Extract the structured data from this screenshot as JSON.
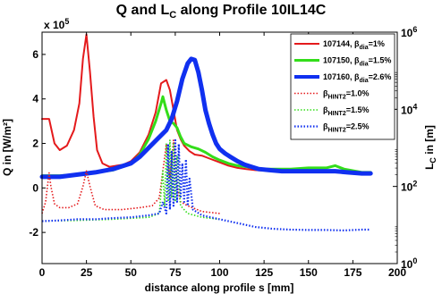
{
  "chart_data": {
    "type": "line",
    "title": {
      "pre": "Q and L",
      "sub": "C",
      "post": " along Profile 10IL14C"
    },
    "xlabel": "distance along profile s [mm]",
    "ylabel_left": "Q in [W/m²]",
    "ylabel_right": {
      "pre": "L",
      "sub": "C",
      "post": " in [m]"
    },
    "x_ticks": [
      "0",
      "25",
      "50",
      "75",
      "100",
      "125",
      "150",
      "175",
      "200"
    ],
    "y_left_ticks": [
      "-2",
      "0",
      "2",
      "4",
      "6"
    ],
    "y_left_exponent": {
      "base": "x 10",
      "exp": "5"
    },
    "y_right_ticks": [
      {
        "base": "10",
        "exp": "0"
      },
      {
        "base": "10",
        "exp": "2"
      },
      {
        "base": "10",
        "exp": "4"
      },
      {
        "base": "10",
        "exp": "6"
      }
    ],
    "xlim": [
      0,
      200
    ],
    "ylim_left": [
      -3.4,
      7.0
    ],
    "ylim_right_log10": [
      0,
      6
    ],
    "legend_position": "top-right",
    "series": [
      {
        "name": "107144, β_dia=1%",
        "legend": {
          "pre": "107144, β",
          "sub": "dia",
          "post": "=1%"
        },
        "axis": "left",
        "style": "solid",
        "width": 2,
        "color": "#e41a1c",
        "points": [
          [
            0,
            3.1
          ],
          [
            4,
            3.1
          ],
          [
            7,
            2.0
          ],
          [
            10,
            1.7
          ],
          [
            14,
            1.9
          ],
          [
            18,
            2.6
          ],
          [
            21,
            3.8
          ],
          [
            23,
            5.8
          ],
          [
            25,
            6.9
          ],
          [
            27,
            5.2
          ],
          [
            29,
            3.2
          ],
          [
            31,
            1.7
          ],
          [
            34,
            1.1
          ],
          [
            38,
            0.95
          ],
          [
            42,
            1.0
          ],
          [
            46,
            1.05
          ],
          [
            50,
            1.2
          ],
          [
            55,
            1.6
          ],
          [
            60,
            2.4
          ],
          [
            64,
            3.4
          ],
          [
            67,
            4.7
          ],
          [
            70,
            4.85
          ],
          [
            72,
            4.4
          ],
          [
            74,
            3.5
          ],
          [
            76,
            2.6
          ],
          [
            78,
            2.2
          ],
          [
            80,
            1.9
          ],
          [
            83,
            1.65
          ],
          [
            86,
            1.5
          ],
          [
            90,
            1.45
          ],
          [
            95,
            1.3
          ],
          [
            100,
            1.15
          ],
          [
            105,
            1.0
          ],
          [
            110,
            0.9
          ],
          [
            115,
            0.85
          ],
          [
            120,
            0.8
          ],
          [
            130,
            0.75
          ],
          [
            140,
            0.75
          ],
          [
            150,
            0.75
          ],
          [
            160,
            0.75
          ],
          [
            170,
            0.7
          ],
          [
            180,
            0.65
          ],
          [
            185,
            0.65
          ]
        ]
      },
      {
        "name": "107150, β_dia=1.5%",
        "legend": {
          "pre": "107150, β",
          "sub": "dia",
          "post": "=1.5%"
        },
        "axis": "left",
        "style": "solid",
        "width": 3,
        "color": "#33dd1a",
        "points": [
          [
            0,
            0.55
          ],
          [
            10,
            0.55
          ],
          [
            20,
            0.6
          ],
          [
            30,
            0.7
          ],
          [
            40,
            0.8
          ],
          [
            50,
            1.1
          ],
          [
            55,
            1.5
          ],
          [
            60,
            2.2
          ],
          [
            64,
            3.0
          ],
          [
            67,
            3.8
          ],
          [
            68,
            4.1
          ],
          [
            70,
            3.5
          ],
          [
            72,
            3.0
          ],
          [
            74,
            2.9
          ],
          [
            76,
            2.7
          ],
          [
            78,
            2.3
          ],
          [
            80,
            2.0
          ],
          [
            84,
            1.85
          ],
          [
            88,
            1.75
          ],
          [
            92,
            1.6
          ],
          [
            96,
            1.4
          ],
          [
            100,
            1.25
          ],
          [
            105,
            1.1
          ],
          [
            110,
            1.0
          ],
          [
            115,
            0.95
          ],
          [
            120,
            0.9
          ],
          [
            125,
            0.85
          ],
          [
            130,
            0.85
          ],
          [
            140,
            0.85
          ],
          [
            150,
            0.9
          ],
          [
            160,
            0.9
          ],
          [
            165,
            1.0
          ],
          [
            170,
            0.85
          ],
          [
            180,
            0.7
          ],
          [
            185,
            0.7
          ]
        ]
      },
      {
        "name": "107160, β_dia=2.6%",
        "legend": {
          "pre": "107160, β",
          "sub": "dia",
          "post": "=2.6%"
        },
        "axis": "left",
        "style": "solid",
        "width": 5,
        "color": "#1030f0",
        "points": [
          [
            0,
            0.5
          ],
          [
            10,
            0.5
          ],
          [
            20,
            0.6
          ],
          [
            30,
            0.7
          ],
          [
            40,
            0.85
          ],
          [
            50,
            1.1
          ],
          [
            55,
            1.4
          ],
          [
            60,
            1.8
          ],
          [
            65,
            2.2
          ],
          [
            70,
            2.6
          ],
          [
            73,
            3.1
          ],
          [
            76,
            3.9
          ],
          [
            79,
            4.9
          ],
          [
            82,
            5.6
          ],
          [
            84,
            5.8
          ],
          [
            86,
            5.75
          ],
          [
            88,
            5.2
          ],
          [
            90,
            4.4
          ],
          [
            92,
            3.5
          ],
          [
            94,
            2.9
          ],
          [
            96,
            2.4
          ],
          [
            98,
            2.0
          ],
          [
            100,
            1.75
          ],
          [
            103,
            1.55
          ],
          [
            106,
            1.4
          ],
          [
            110,
            1.2
          ],
          [
            114,
            1.05
          ],
          [
            118,
            0.95
          ],
          [
            122,
            0.85
          ],
          [
            128,
            0.8
          ],
          [
            135,
            0.75
          ],
          [
            142,
            0.75
          ],
          [
            150,
            0.75
          ],
          [
            158,
            0.75
          ],
          [
            165,
            0.75
          ],
          [
            172,
            0.7
          ],
          [
            180,
            0.65
          ],
          [
            185,
            0.65
          ]
        ]
      },
      {
        "name": "β_HINT2=1.0%",
        "legend": {
          "pre": "β",
          "sub": "HINT2",
          "post": "=1.0%"
        },
        "axis": "right",
        "style": "dotted",
        "width": 1.6,
        "color": "#e41a1c",
        "points_log10_Lc": [
          [
            0,
            1.3
          ],
          [
            2,
            1.6
          ],
          [
            3,
            2.0
          ],
          [
            4,
            2.35
          ],
          [
            5,
            2.0
          ],
          [
            7,
            1.55
          ],
          [
            10,
            1.45
          ],
          [
            15,
            1.45
          ],
          [
            20,
            1.55
          ],
          [
            23,
            2.0
          ],
          [
            25,
            2.4
          ],
          [
            27,
            2.0
          ],
          [
            30,
            1.5
          ],
          [
            35,
            1.4
          ],
          [
            45,
            1.4
          ],
          [
            55,
            1.45
          ],
          [
            62,
            1.5
          ],
          [
            66,
            1.7
          ],
          [
            68,
            2.4
          ],
          [
            70,
            3.1
          ],
          [
            72,
            2.2
          ],
          [
            74,
            3.2
          ],
          [
            76,
            2.0
          ],
          [
            78,
            1.6
          ],
          [
            82,
            1.5
          ],
          [
            90,
            1.35
          ],
          [
            100,
            1.3
          ]
        ]
      },
      {
        "name": "β_HINT2=1.5%",
        "legend": {
          "pre": "β",
          "sub": "HINT2",
          "post": "=1.5%"
        },
        "axis": "right",
        "style": "dotted",
        "width": 1.6,
        "color": "#33dd1a",
        "points_log10_Lc": [
          [
            0,
            1.1
          ],
          [
            20,
            1.12
          ],
          [
            40,
            1.15
          ],
          [
            60,
            1.2
          ],
          [
            66,
            1.3
          ],
          [
            68,
            2.4
          ],
          [
            69,
            1.5
          ],
          [
            70,
            3.1
          ],
          [
            71,
            1.6
          ],
          [
            72,
            3.2
          ],
          [
            73,
            1.7
          ],
          [
            74,
            3.1
          ],
          [
            75,
            1.6
          ],
          [
            76,
            2.8
          ],
          [
            78,
            1.5
          ],
          [
            82,
            1.3
          ],
          [
            90,
            1.2
          ],
          [
            100,
            1.15
          ]
        ]
      },
      {
        "name": "β_HINT2=2.5%",
        "legend": {
          "pre": "β",
          "sub": "HINT2",
          "post": "=2.5%"
        },
        "axis": "right",
        "style": "dotted",
        "width": 2.2,
        "color": "#1030f0",
        "points_log10_Lc": [
          [
            0,
            1.1
          ],
          [
            10,
            1.12
          ],
          [
            20,
            1.15
          ],
          [
            30,
            1.15
          ],
          [
            40,
            1.18
          ],
          [
            50,
            1.2
          ],
          [
            60,
            1.25
          ],
          [
            66,
            1.3
          ],
          [
            68,
            1.6
          ],
          [
            70,
            1.3
          ],
          [
            71,
            3.1
          ],
          [
            72,
            1.4
          ],
          [
            73,
            2.9
          ],
          [
            74,
            1.5
          ],
          [
            75,
            3.2
          ],
          [
            76,
            1.6
          ],
          [
            77,
            3.1
          ],
          [
            78,
            1.7
          ],
          [
            79,
            2.6
          ],
          [
            80,
            1.6
          ],
          [
            81,
            2.7
          ],
          [
            82,
            1.5
          ],
          [
            83,
            2.2
          ],
          [
            85,
            1.4
          ],
          [
            90,
            1.25
          ],
          [
            100,
            1.15
          ],
          [
            110,
            1.05
          ],
          [
            120,
            0.95
          ],
          [
            130,
            0.9
          ],
          [
            140,
            0.88
          ],
          [
            150,
            0.87
          ],
          [
            160,
            0.87
          ],
          [
            170,
            0.86
          ],
          [
            180,
            0.88
          ],
          [
            185,
            0.88
          ]
        ]
      }
    ]
  }
}
